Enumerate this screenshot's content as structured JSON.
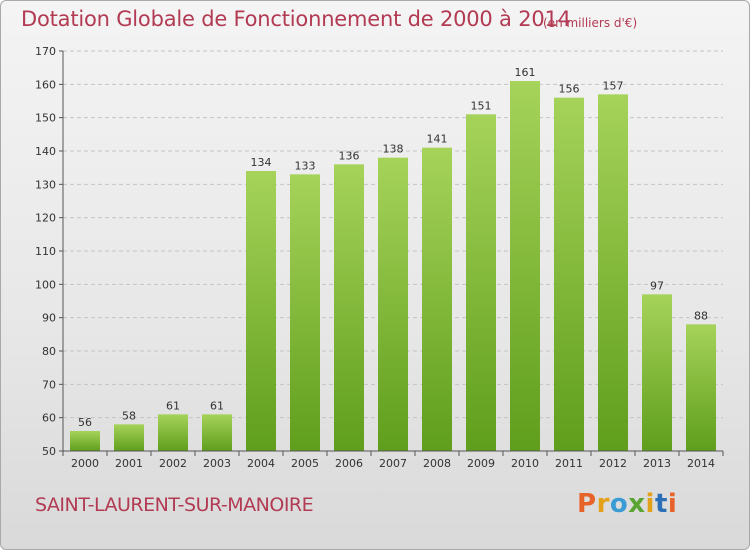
{
  "header": {
    "title": "Dotation Globale de Fonctionnement de 2000 à 2014",
    "unit": "(en milliers d'€)"
  },
  "footer": {
    "commune": "SAINT-LAURENT-SUR-MANOIRE",
    "logo": [
      "P",
      "r",
      "o",
      "x",
      "i",
      "t",
      "i"
    ]
  },
  "colors": {
    "title": "#b23a53",
    "bar_light": "#a6d35a",
    "bar_dark": "#5f9e1c"
  },
  "chart_data": {
    "type": "bar",
    "categories": [
      "2000",
      "2001",
      "2002",
      "2003",
      "2004",
      "2005",
      "2006",
      "2007",
      "2008",
      "2009",
      "2010",
      "2011",
      "2012",
      "2013",
      "2014"
    ],
    "values": [
      56,
      58,
      61,
      61,
      134,
      133,
      136,
      138,
      141,
      151,
      161,
      156,
      157,
      97,
      88
    ],
    "ylim": [
      50,
      170
    ],
    "yticks": [
      50,
      60,
      70,
      80,
      90,
      100,
      110,
      120,
      130,
      140,
      150,
      160,
      170
    ],
    "grid": true,
    "data_labels": true
  }
}
